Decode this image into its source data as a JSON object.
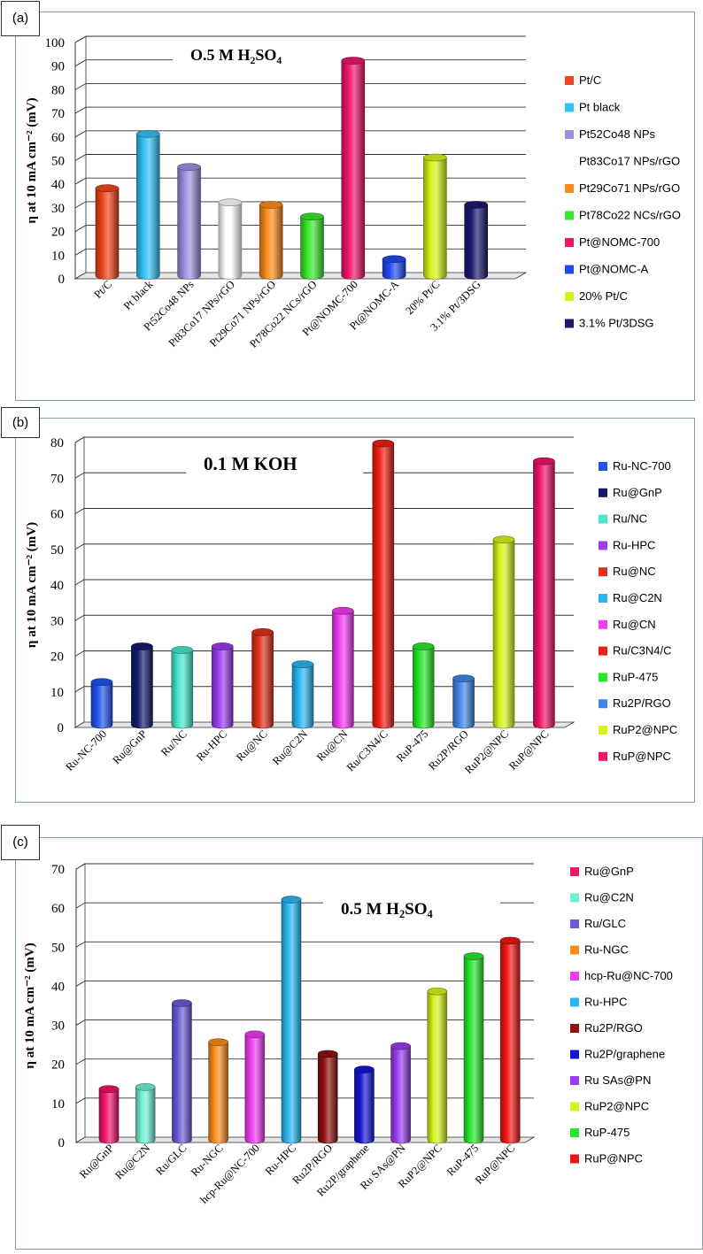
{
  "panels": [
    {
      "label": "(a)"
    },
    {
      "label": "(b)"
    },
    {
      "label": "(c)"
    }
  ],
  "chart_data": [
    {
      "type": "bar",
      "title_main": "O.5 M H",
      "title_sub1": "2",
      "title_mid": "SO",
      "title_sub2": "4",
      "ylabel": "η at 10 mA cm⁻² (mV)",
      "ylim": [
        0,
        100
      ],
      "yticks": [
        0,
        10,
        20,
        30,
        40,
        50,
        60,
        70,
        80,
        90,
        100
      ],
      "categories": [
        "Pt/C",
        "Pt black",
        "Pt52Co48 NPs",
        "Pt83Co17 NPs/rGO",
        "Pt29Co71 NPs/rGO",
        "Pt78Co22 NCs/rGO",
        "Pt@NOMC-700",
        "Pt@NOMC-A",
        "20% Pt/C",
        "3.1% Pt/3DSG"
      ],
      "values": [
        37,
        60,
        46,
        31,
        30,
        25,
        91,
        7,
        50,
        30
      ],
      "colors": [
        "#f0441c",
        "#33c2f5",
        "#9b8fe0",
        "#ffffff",
        "#f98c1a",
        "#38e82a",
        "#f0146a",
        "#1e4af0",
        "#d6f21a",
        "#1a1a6e"
      ],
      "legend": [
        "Pt/C",
        "Pt black",
        "Pt52Co48 NPs",
        "Pt83Co17 NPs/rGO",
        "Pt29Co71 NPs/rGO",
        "Pt78Co22 NCs/rGO",
        "Pt@NOMC-700",
        "Pt@NOMC-A",
        "20% Pt/C",
        "3.1% Pt/3DSG"
      ],
      "grid": true
    },
    {
      "type": "bar",
      "title_main": "0.1 M KOH",
      "title_sub1": "",
      "title_mid": "",
      "title_sub2": "",
      "ylabel": "η at 10 mA cm⁻² (mV)",
      "ylim": [
        0,
        80
      ],
      "yticks": [
        0,
        10,
        20,
        30,
        40,
        50,
        60,
        70,
        80
      ],
      "categories": [
        "Ru-NC-700",
        "Ru@GnP",
        "Ru/NC",
        "Ru-HPC",
        "Ru@NC",
        "Ru@C2N",
        "Ru@CN",
        "Ru/C3N4/C",
        "RuP-475",
        "Ru2P/RGO",
        "RuP2@NPC",
        "RuP@NPC"
      ],
      "values": [
        12,
        22,
        21,
        22,
        26,
        17,
        32,
        79,
        22,
        13,
        52,
        74
      ],
      "colors": [
        "#1e55f0",
        "#141a6e",
        "#49e6cc",
        "#9a3cf0",
        "#e0301a",
        "#2ab6f0",
        "#f03cf0",
        "#f01e14",
        "#29e629",
        "#3f86e6",
        "#d6f21a",
        "#f0146a"
      ],
      "legend": [
        "Ru-NC-700",
        "Ru@GnP",
        "Ru/NC",
        "Ru-HPC",
        "Ru@NC",
        "Ru@C2N",
        "Ru@CN",
        "Ru/C3N4/C",
        "RuP-475",
        "Ru2P/RGO",
        "RuP2@NPC",
        "RuP@NPC"
      ],
      "grid": true
    },
    {
      "type": "bar",
      "title_main": "0.5 M H",
      "title_sub1": "2",
      "title_mid": "SO",
      "title_sub2": "4",
      "ylabel": "η at 10 mA cm⁻² (mV)",
      "ylim": [
        0,
        70
      ],
      "yticks": [
        0,
        10,
        20,
        30,
        40,
        50,
        60,
        70
      ],
      "categories": [
        "Ru@GnP",
        "Ru@C2N",
        "Ru/GLC",
        "Ru-NGC",
        "hcp-Ru@NC-700",
        "Ru-HPC",
        "Ru2P/RGO",
        "Ru2P/graphene",
        "Ru SAs@PN",
        "RuP2@NPC",
        "RuP-475",
        "RuP@NPC"
      ],
      "values": [
        13,
        13.5,
        35,
        25,
        27,
        61.5,
        22,
        18,
        24,
        38,
        47,
        51
      ],
      "colors": [
        "#f0146a",
        "#6ff0d6",
        "#6a5ad6",
        "#f98c1a",
        "#f03cf0",
        "#2ab6f0",
        "#8e1010",
        "#1414d6",
        "#9a3cf0",
        "#d6f21a",
        "#29e629",
        "#f01414"
      ],
      "legend": [
        "Ru@GnP",
        "Ru@C2N",
        "Ru/GLC",
        "Ru-NGC",
        "hcp-Ru@NC-700",
        "Ru-HPC",
        "Ru2P/RGO",
        "Ru2P/graphene",
        "Ru SAs@PN",
        "RuP2@NPC",
        "RuP-475",
        "RuP@NPC"
      ],
      "grid": true
    }
  ]
}
